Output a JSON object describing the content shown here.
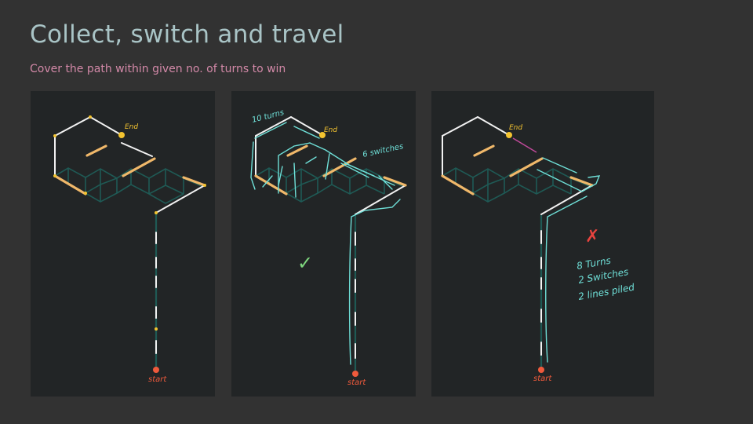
{
  "slide": {
    "title": "Collect, switch and travel",
    "subtitle": "Cover the path within given no. of turns to win"
  },
  "panels": [
    {
      "end_label": "End",
      "start_label": "start"
    },
    {
      "end_label": "End",
      "start_label": "start",
      "turns_note": "10 turns",
      "switches_note": "6 switches",
      "verdict_symbol": "✓"
    },
    {
      "end_label": "End",
      "start_label": "start",
      "verdict_symbol": "✗",
      "notes": [
        "8 Turns",
        "2 Switches",
        "2 lines piled"
      ]
    }
  ],
  "colors": {
    "background": "#323232",
    "panel": "#222526",
    "path_white": "#f2f2f2",
    "grid_teal": "#1f5a55",
    "collectible_orange": "#f0b86a",
    "end_marker": "#f4c430",
    "start_marker": "#ef5a3c",
    "annotation_cyan": "#6fe0d8",
    "check_green": "#7ed67e",
    "cross_red": "#e8433e"
  }
}
